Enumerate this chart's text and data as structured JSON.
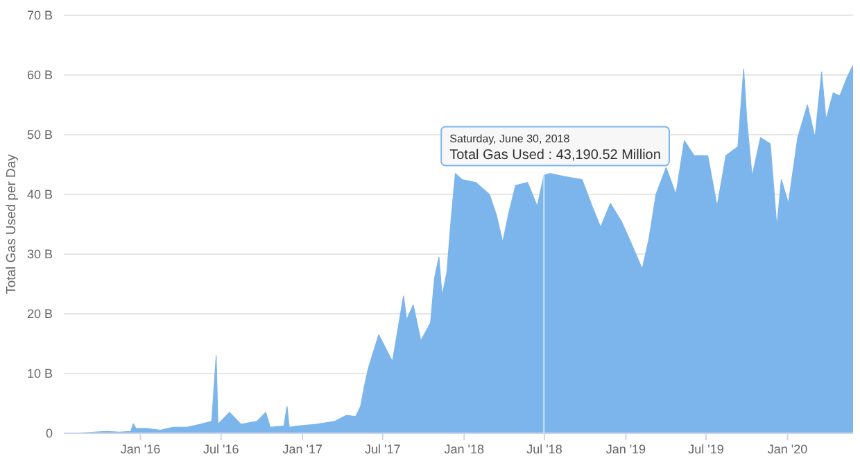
{
  "chart_data": {
    "type": "area",
    "ylabel": "Total Gas Used per Day",
    "x": [
      "2015-07-30",
      "2015-09-01",
      "2015-10-15",
      "2015-11-15",
      "2015-12-10",
      "2015-12-16",
      "2015-12-22",
      "2016-01-15",
      "2016-02-15",
      "2016-03-15",
      "2016-04-15",
      "2016-05-15",
      "2016-06-10",
      "2016-06-20",
      "2016-06-24",
      "2016-07-20",
      "2016-08-15",
      "2016-09-20",
      "2016-10-10",
      "2016-10-20",
      "2016-11-20",
      "2016-11-27",
      "2016-12-02",
      "2016-12-20",
      "2017-02-01",
      "2017-03-15",
      "2017-04-10",
      "2017-05-01",
      "2017-05-12",
      "2017-05-21",
      "2017-05-30",
      "2017-06-22",
      "2017-07-23",
      "2017-08-17",
      "2017-08-24",
      "2017-09-08",
      "2017-09-25",
      "2017-10-17",
      "2017-10-26",
      "2017-11-05",
      "2017-11-12",
      "2017-11-23",
      "2017-12-02",
      "2017-12-12",
      "2017-12-27",
      "2018-01-27",
      "2018-02-27",
      "2018-03-15",
      "2018-03-29",
      "2018-04-12",
      "2018-04-27",
      "2018-05-24",
      "2018-06-15",
      "2018-06-30",
      "2018-07-14",
      "2018-08-14",
      "2018-09-24",
      "2018-10-17",
      "2018-11-05",
      "2018-11-27",
      "2018-12-22",
      "2019-01-12",
      "2019-02-07",
      "2019-02-22",
      "2019-03-10",
      "2019-04-02",
      "2019-04-24",
      "2019-05-13",
      "2019-06-04",
      "2019-07-05",
      "2019-07-26",
      "2019-08-15",
      "2019-09-11",
      "2019-09-24",
      "2019-10-01",
      "2019-10-13",
      "2019-11-01",
      "2019-11-23",
      "2019-12-08",
      "2019-12-18",
      "2020-01-03",
      "2020-01-24",
      "2020-02-15",
      "2020-03-03",
      "2020-03-18",
      "2020-03-28",
      "2020-04-13",
      "2020-04-28",
      "2020-05-14",
      "2020-05-27"
    ],
    "series": [
      {
        "color": "#7cb5ec",
        "values": [
          0,
          0.1,
          0.3,
          0.2,
          0.3,
          1.6,
          0.8,
          0.8,
          0.5,
          1.0,
          1.0,
          1.5,
          2.0,
          13,
          1.5,
          3.5,
          1.5,
          2.0,
          3.5,
          1.0,
          1.2,
          4.5,
          1.0,
          1.2,
          1.5,
          2.0,
          3.0,
          2.8,
          4.5,
          8,
          11,
          16.5,
          12,
          23,
          19,
          21.5,
          15.5,
          18.5,
          26,
          29.5,
          23,
          27,
          35.5,
          43.5,
          42.5,
          42,
          40,
          36.5,
          32,
          37,
          41.5,
          42,
          38,
          43.19,
          43.5,
          43,
          42.5,
          38,
          34.5,
          38.5,
          35.5,
          32,
          27.5,
          32.5,
          40,
          44.5,
          40,
          49,
          46.5,
          46.5,
          38,
          46.5,
          48,
          61,
          52.5,
          43,
          49.5,
          48.5,
          34.5,
          42.5,
          38.5,
          49.5,
          55,
          49.5,
          60.5,
          52.5,
          57,
          56.5,
          59.5,
          61.5
        ]
      }
    ],
    "xlim": [
      "2015-07-12",
      "2020-05-28"
    ],
    "xticks": [
      {
        "value": "2016-01-01",
        "label": "Jan '16"
      },
      {
        "value": "2016-07-01",
        "label": "Jul '16"
      },
      {
        "value": "2017-01-01",
        "label": "Jan '17"
      },
      {
        "value": "2017-07-01",
        "label": "Jul '17"
      },
      {
        "value": "2018-01-01",
        "label": "Jan '18"
      },
      {
        "value": "2018-07-01",
        "label": "Jul '18"
      },
      {
        "value": "2019-01-01",
        "label": "Jan '19"
      },
      {
        "value": "2019-07-01",
        "label": "Jul '19"
      },
      {
        "value": "2020-01-01",
        "label": "Jan '20"
      }
    ],
    "ylim": [
      0,
      70
    ],
    "yticks": [
      0,
      {
        "value": 10,
        "label": "10 B"
      },
      {
        "value": 20,
        "label": "20 B"
      },
      {
        "value": 30,
        "label": "30 B"
      },
      {
        "value": 40,
        "label": "40 B"
      },
      {
        "value": 50,
        "label": "50 B"
      },
      {
        "value": 60,
        "label": "60 B"
      },
      {
        "value": 70,
        "label": "70 B"
      }
    ],
    "grid": "y",
    "annotations": [
      {
        "text": "Saturday, June 30, 2018\nTotal Gas Used : 43,190.52 Million",
        "x": "2018-06-30",
        "y": 43.19
      }
    ]
  }
}
